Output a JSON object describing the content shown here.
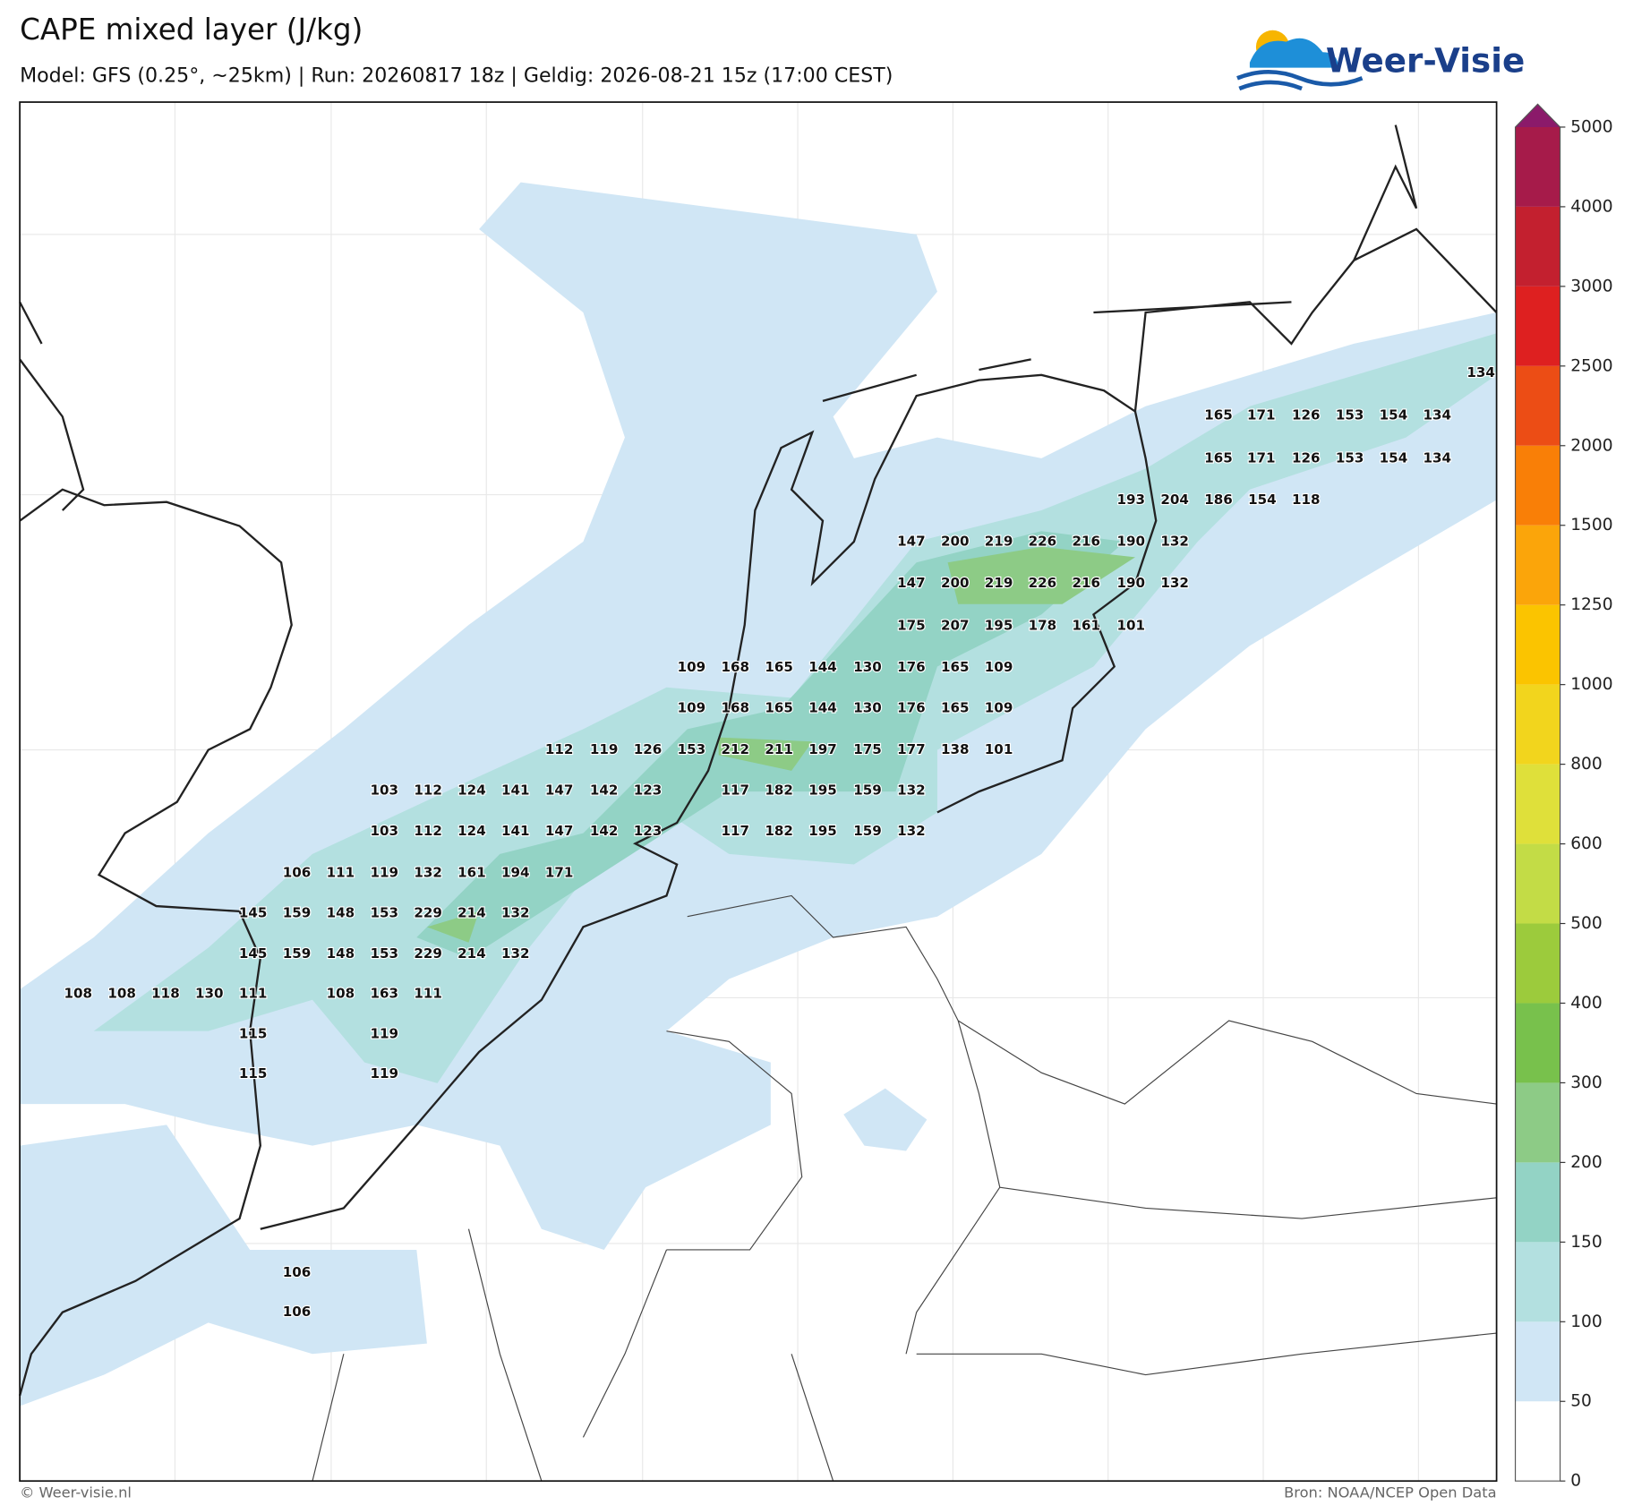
{
  "header": {
    "title": "CAPE mixed layer (J/kg)",
    "subtitle": "Model: GFS (0.25°, ~25km)  |  Run: 20260817 18z  |  Geldig: 2026-08-21 15z (17:00 CEST)",
    "logo": "Weer-Visie"
  },
  "map_values": [
    134,
    165,
    171,
    126,
    153,
    154,
    134,
    165,
    171,
    126,
    153,
    154,
    134,
    193,
    204,
    186,
    154,
    118,
    147,
    200,
    219,
    226,
    216,
    190,
    132,
    147,
    200,
    219,
    226,
    216,
    190,
    132,
    175,
    207,
    195,
    178,
    161,
    101,
    109,
    168,
    165,
    144,
    130,
    176,
    165,
    109,
    109,
    168,
    165,
    144,
    130,
    176,
    165,
    109,
    112,
    119,
    126,
    153,
    212,
    211,
    197,
    175,
    177,
    138,
    101,
    103,
    112,
    124,
    141,
    147,
    142,
    123,
    117,
    182,
    195,
    159,
    132,
    103,
    112,
    124,
    141,
    147,
    142,
    123,
    117,
    182,
    195,
    159,
    132,
    106,
    111,
    119,
    132,
    161,
    194,
    171,
    145,
    159,
    148,
    153,
    229,
    214,
    132,
    145,
    159,
    148,
    153,
    229,
    214,
    132,
    108,
    108,
    118,
    130,
    111,
    108,
    163,
    111,
    115,
    119,
    115,
    119,
    106,
    106
  ],
  "colorbar": {
    "levels": [
      0,
      50,
      100,
      150,
      200,
      300,
      400,
      500,
      600,
      800,
      1000,
      1250,
      1500,
      2000,
      2500,
      3000,
      4000,
      5000
    ],
    "colors": [
      "#ffffff",
      "#d0e6f5",
      "#b3e0e0",
      "#93d3c5",
      "#8dcb86",
      "#78c14c",
      "#9ccb3c",
      "#c3dc46",
      "#dfe03a",
      "#f2d51d",
      "#fbc400",
      "#fba50a",
      "#f97f07",
      "#ec4d15",
      "#de2020",
      "#c3202f",
      "#a61b4a"
    ],
    "extend_color": "#8b1a6a"
  },
  "footer": {
    "left": "© Weer-visie.nl",
    "right": "Bron: NOAA/NCEP Open Data"
  }
}
